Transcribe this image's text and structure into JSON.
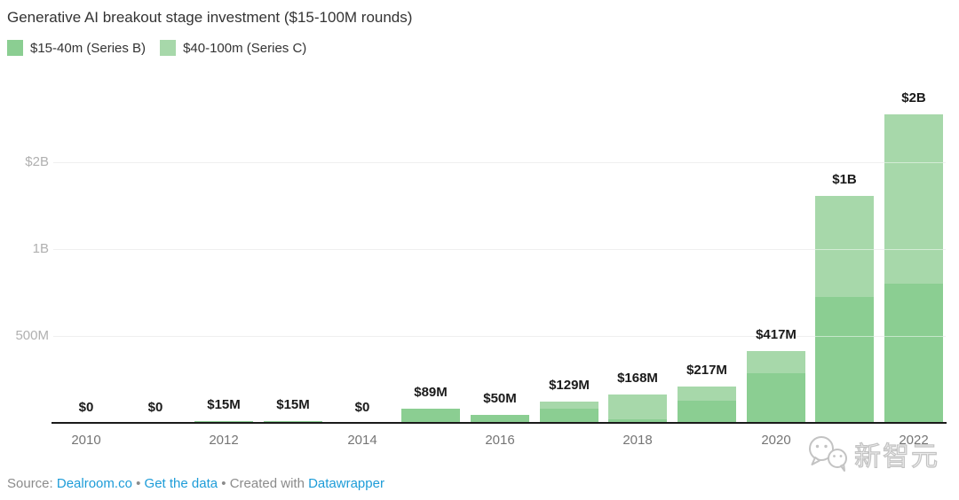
{
  "title": "Generative AI breakout stage investment ($15-100M rounds)",
  "legend": [
    {
      "label": "$15-40m (Series B)",
      "color": "#8bce92"
    },
    {
      "label": "$40-100m (Series C)",
      "color": "#a7d8aa"
    }
  ],
  "chart_data": {
    "type": "bar",
    "stacked": true,
    "title": "Generative AI breakout stage investment ($15-100M rounds)",
    "unit": "$M",
    "grid": true,
    "legend_position": "top-left",
    "categories": [
      "2010",
      "2011",
      "2012",
      "2013",
      "2014",
      "2015",
      "2016",
      "2017",
      "2018",
      "2019",
      "2020",
      "2021",
      "2022"
    ],
    "series": [
      {
        "name": "$15-40m (Series B)",
        "color": "#8bce92",
        "values": [
          0,
          0,
          15,
          15,
          0,
          89,
          50,
          88,
          26,
          135,
          290,
          730,
          805
        ]
      },
      {
        "name": "$40-100m (Series C)",
        "color": "#a7d8aa",
        "values": [
          0,
          0,
          0,
          0,
          0,
          0,
          0,
          41,
          142,
          82,
          127,
          580,
          975
        ]
      }
    ],
    "bar_labels": [
      "$0",
      "$0",
      "$15M",
      "$15M",
      "$0",
      "$89M",
      "$50M",
      "$129M",
      "$168M",
      "$217M",
      "$417M",
      "$1B",
      "$2B"
    ],
    "x_tick_labels": [
      "2010",
      "2012",
      "2014",
      "2016",
      "2018",
      "2020",
      "2022"
    ],
    "y_axis": [
      {
        "label": "$2B",
        "y": 184
      },
      {
        "label": "1B",
        "y": 282
      },
      {
        "label": "500M",
        "y": 380
      }
    ],
    "ylim_label": "0 to $2B"
  },
  "watermark": {
    "icon": "wechat-icon",
    "text": "新智元"
  },
  "footer": {
    "source_prefix": "Source: ",
    "source_link": "Dealroom.co",
    "separator": "•",
    "data_link": "Get the data",
    "created_prefix": "Created with ",
    "tool_link": "Datawrapper",
    "link_color": "#1d9cd8"
  }
}
